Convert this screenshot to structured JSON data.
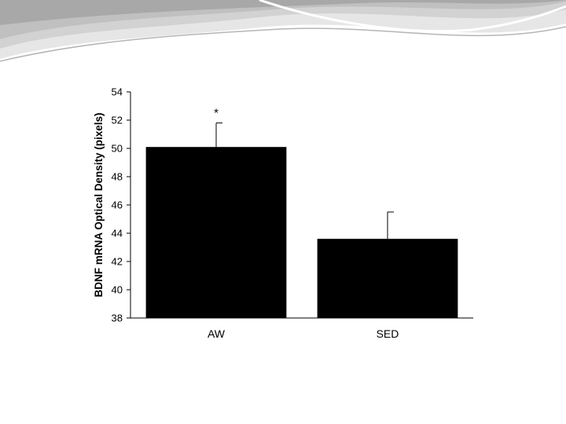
{
  "slide": {
    "background_color": "#ffffff",
    "banner_colors": [
      "#e6e6e6",
      "#d2d2d2",
      "#c0c0c0",
      "#a8a8a8"
    ]
  },
  "chart_data": {
    "type": "bar",
    "categories": [
      "AW",
      "SED"
    ],
    "values": [
      50.1,
      43.6
    ],
    "error_upper": [
      51.8,
      45.5
    ],
    "title": "",
    "xlabel": "",
    "ylabel": "BDNF mRNA Optical Density (pixels)",
    "ylim": [
      38,
      54
    ],
    "yticks": [
      38,
      40,
      42,
      44,
      46,
      48,
      50,
      52,
      54
    ],
    "annotations": [
      {
        "category": "AW",
        "text": "*"
      }
    ],
    "bar_color": "#000000",
    "grid": false,
    "legend": "none"
  }
}
